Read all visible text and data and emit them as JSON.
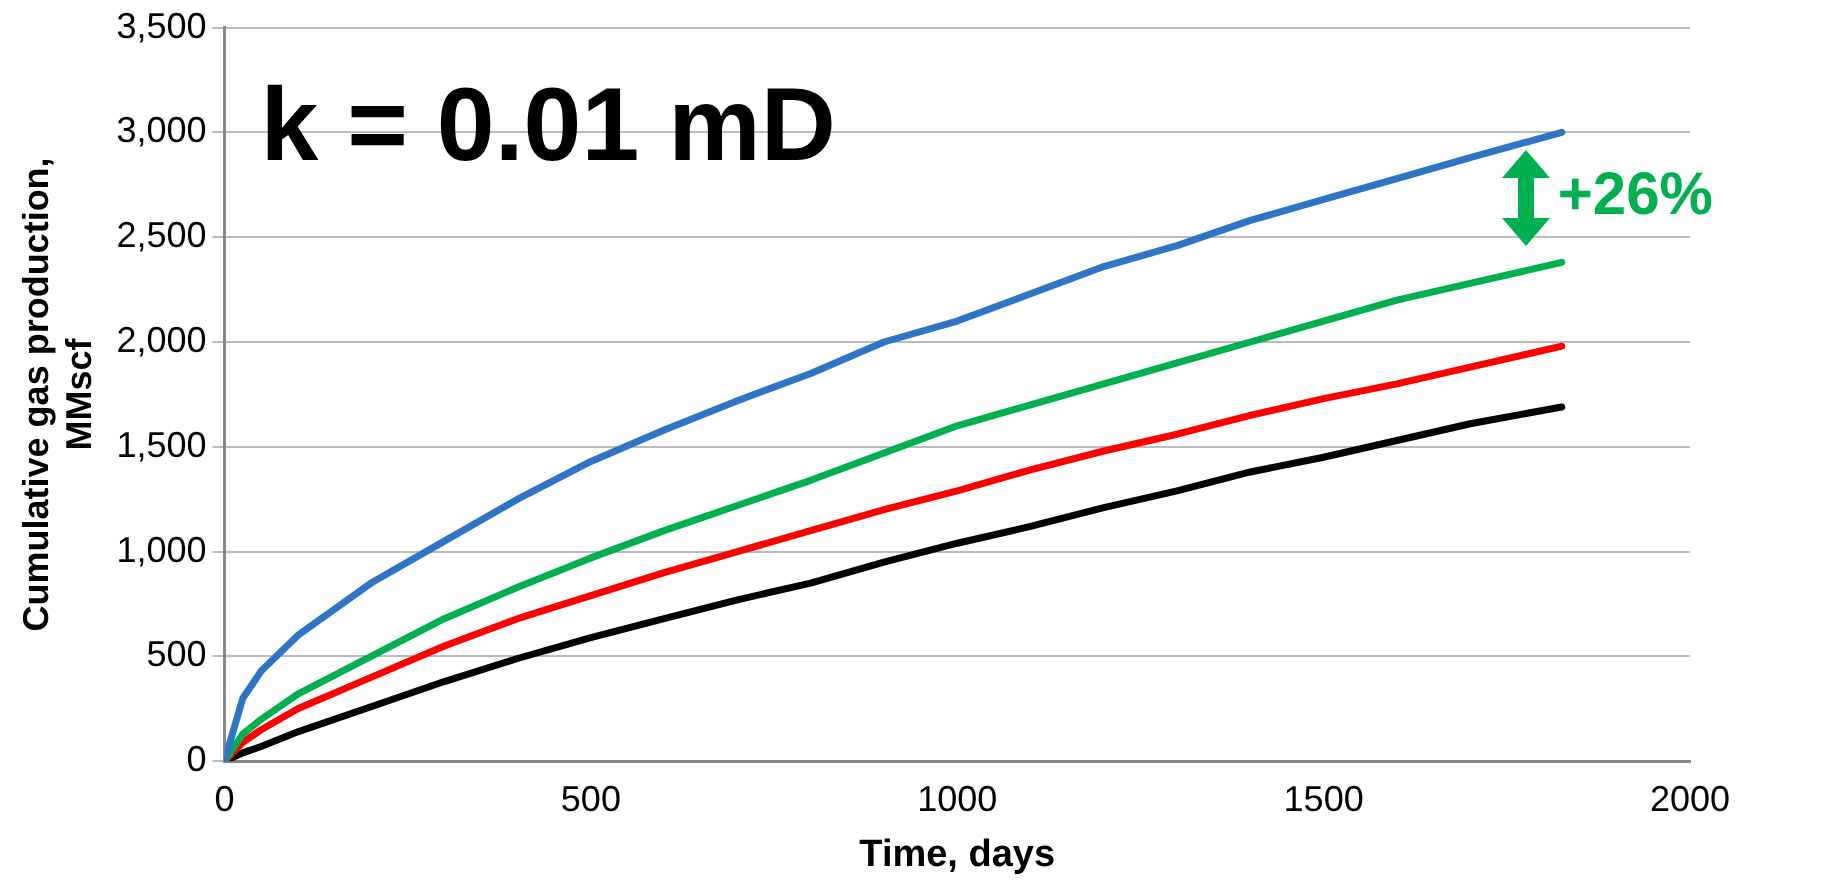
{
  "chart_data": {
    "type": "line",
    "xlabel": "Time, days",
    "ylabel": "Cumulative gas production, MMscf",
    "xlim": [
      0,
      2000
    ],
    "xticks": [
      0,
      500,
      1000,
      1500,
      2000
    ],
    "ylim": [
      0,
      3500
    ],
    "yticks": [
      0,
      500,
      {
        "value": 1000,
        "label": "1,000"
      },
      {
        "value": 1500,
        "label": "1,500"
      },
      {
        "value": 2000,
        "label": "2,000"
      },
      {
        "value": 2500,
        "label": "2,500"
      },
      {
        "value": 3000,
        "label": "3,000"
      },
      {
        "value": 3500,
        "label": "3,500"
      }
    ],
    "grid": "y",
    "legend": false,
    "marker": "none",
    "line_style": "solid",
    "x": [
      0,
      25,
      50,
      100,
      200,
      300,
      400,
      500,
      600,
      700,
      800,
      900,
      1000,
      1100,
      1200,
      1300,
      1400,
      1500,
      1600,
      1700,
      1825
    ],
    "series": [
      {
        "color": "#2e75c6",
        "values": [
          0,
          300,
          430,
          600,
          850,
          1050,
          1250,
          1430,
          1580,
          1720,
          1850,
          2000,
          2100,
          2230,
          2360,
          2460,
          2580,
          2680,
          2780,
          2880,
          3000
        ]
      },
      {
        "color": "#00b050",
        "values": [
          0,
          130,
          200,
          320,
          500,
          680,
          830,
          970,
          1100,
          1220,
          1340,
          1470,
          1600,
          1700,
          1800,
          1900,
          2000,
          2100,
          2200,
          2280,
          2380
        ]
      },
      {
        "color": "#ff0000",
        "values": [
          0,
          90,
          150,
          250,
          400,
          550,
          680,
          790,
          900,
          1000,
          1100,
          1200,
          1290,
          1390,
          1480,
          1560,
          1650,
          1730,
          1800,
          1880,
          1980
        ]
      },
      {
        "color": "#000000",
        "values": [
          0,
          40,
          70,
          140,
          260,
          380,
          490,
          590,
          680,
          770,
          850,
          950,
          1040,
          1120,
          1210,
          1290,
          1380,
          1450,
          1530,
          1610,
          1690
        ]
      }
    ],
    "annotations": [
      "k = 0.01 mD",
      "+26%"
    ]
  }
}
